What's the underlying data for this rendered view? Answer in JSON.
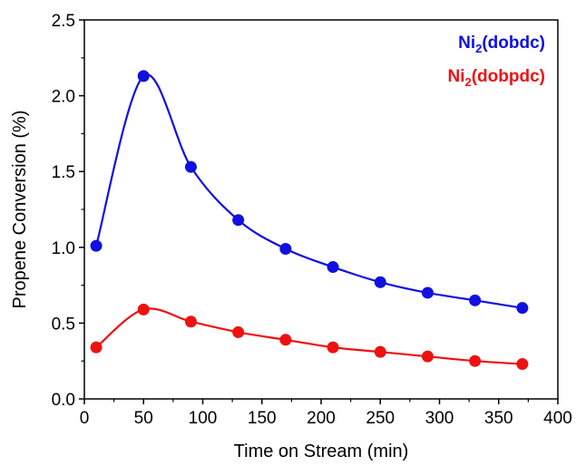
{
  "chart_data": {
    "type": "line",
    "xlabel": "Time on Stream (min)",
    "ylabel": "Propene Conversion (%)",
    "xlim": [
      0,
      400
    ],
    "ylim": [
      0,
      2.5
    ],
    "x_ticks": [
      "0",
      "50",
      "100",
      "150",
      "200",
      "250",
      "300",
      "350",
      "400"
    ],
    "y_ticks": [
      "0.0",
      "0.5",
      "1.0",
      "1.5",
      "2.0",
      "2.5"
    ],
    "grid": false,
    "legend_position": "top-right",
    "x": [
      10,
      50,
      90,
      130,
      170,
      210,
      250,
      290,
      330,
      370
    ],
    "series": [
      {
        "name": "Ni2(dobdc)",
        "label_main": "Ni",
        "label_sub": "2",
        "label_rest": "(dobdc)",
        "color": "#1010e0",
        "values": [
          1.01,
          2.13,
          1.53,
          1.18,
          0.99,
          0.87,
          0.77,
          0.7,
          0.65,
          0.6
        ]
      },
      {
        "name": "Ni2(dobpdc)",
        "label_main": "Ni",
        "label_sub": "2",
        "label_rest": "(dobpdc)",
        "color": "#ee1111",
        "values": [
          0.34,
          0.59,
          0.51,
          0.44,
          0.39,
          0.34,
          0.31,
          0.28,
          0.25,
          0.23
        ]
      }
    ]
  }
}
